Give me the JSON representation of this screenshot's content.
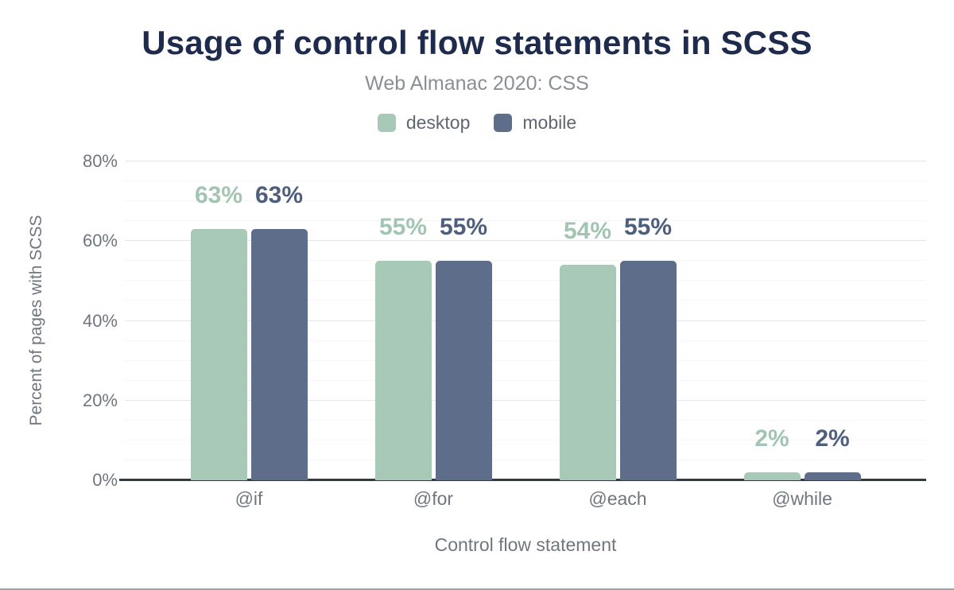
{
  "page": {
    "title": "Usage of control flow statements in SCSS",
    "subtitle": "Web Almanac 2020: CSS"
  },
  "legend": {
    "items": [
      {
        "label": "desktop",
        "color": "#a9c9b8"
      },
      {
        "label": "mobile",
        "color": "#5e6e8a"
      }
    ]
  },
  "chart_data": {
    "type": "bar",
    "title": "Usage of control flow statements in SCSS",
    "subtitle": "Web Almanac 2020: CSS",
    "categories": [
      "@if",
      "@for",
      "@each",
      "@while"
    ],
    "series": [
      {
        "name": "desktop",
        "color": "#a9c9b8",
        "label_color": "#a2c5b3",
        "values": [
          63,
          55,
          54,
          2
        ]
      },
      {
        "name": "mobile",
        "color": "#5e6e8a",
        "label_color": "#4e5f7e",
        "values": [
          63,
          55,
          55,
          2
        ]
      }
    ],
    "value_suffix": "%",
    "xlabel": "Control flow statement",
    "ylabel": "Percent of pages with SCSS",
    "ylim": [
      0,
      80
    ],
    "yticks": [
      0,
      20,
      40,
      60,
      80
    ],
    "grid_minor_step": 5,
    "grid_major_step": 20,
    "grid": true,
    "legend_position": "top",
    "colors": {
      "title": "#1e2b4d",
      "axis_text": "#70757e",
      "axis_line": "#343a40",
      "grid_minor": "#f5f5f5",
      "grid_major": "#e6e6e6"
    }
  }
}
